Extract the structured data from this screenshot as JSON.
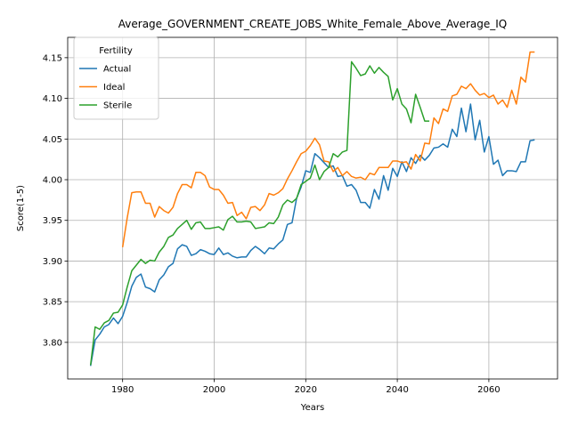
{
  "chart_data": {
    "type": "line",
    "title": "Average_GOVERNMENT_CREATE_JOBS_White_Female_Above_Average_IQ",
    "xlabel": "Years",
    "ylabel": "Score(1-5)",
    "xlim": [
      1968,
      2075
    ],
    "ylim": [
      3.755,
      4.175
    ],
    "xticks": [
      1980,
      2000,
      2020,
      2040,
      2060
    ],
    "yticks": [
      3.8,
      3.85,
      3.9,
      3.95,
      4.0,
      4.05,
      4.1,
      4.15
    ],
    "grid": true,
    "legend": {
      "title": "Fertility",
      "position": "upper left"
    },
    "series": [
      {
        "name": "Actual",
        "color": "#1f77b4",
        "x": [
          1973,
          1974,
          1975,
          1976,
          1977,
          1978,
          1979,
          1980,
          1981,
          1982,
          1983,
          1984,
          1985,
          1986,
          1987,
          1988,
          1989,
          1990,
          1991,
          1992,
          1993,
          1994,
          1995,
          1996,
          1997,
          1998,
          1999,
          2000,
          2001,
          2002,
          2003,
          2004,
          2005,
          2006,
          2007,
          2008,
          2009,
          2010,
          2011,
          2012,
          2013,
          2014,
          2015,
          2016,
          2017,
          2018,
          2019,
          2020,
          2021,
          2022,
          2023,
          2024,
          2025,
          2026,
          2027,
          2028,
          2029,
          2030,
          2031,
          2032,
          2033,
          2034,
          2035,
          2036,
          2037,
          2038,
          2039,
          2040,
          2041,
          2042,
          2043,
          2044,
          2045,
          2046,
          2047,
          2048,
          2049,
          2050,
          2051,
          2052,
          2053,
          2054,
          2055,
          2056,
          2057,
          2058,
          2059,
          2060,
          2061,
          2062,
          2063,
          2064,
          2065,
          2066,
          2067,
          2068,
          2069,
          2070
        ],
        "values": [
          3.771,
          3.803,
          3.81,
          3.819,
          3.822,
          3.83,
          3.823,
          3.832,
          3.849,
          3.869,
          3.88,
          3.884,
          3.868,
          3.866,
          3.862,
          3.877,
          3.883,
          3.893,
          3.897,
          3.915,
          3.92,
          3.918,
          3.907,
          3.909,
          3.914,
          3.912,
          3.909,
          3.908,
          3.916,
          3.908,
          3.91,
          3.906,
          3.904,
          3.905,
          3.905,
          3.913,
          3.918,
          3.914,
          3.909,
          3.916,
          3.915,
          3.921,
          3.926,
          3.945,
          3.947,
          3.977,
          3.991,
          4.011,
          4.009,
          4.032,
          4.027,
          4.021,
          4.015,
          4.017,
          4.004,
          4.005,
          3.992,
          3.994,
          3.987,
          3.972,
          3.972,
          3.965,
          3.988,
          3.976,
          4.005,
          3.987,
          4.014,
          4.004,
          4.022,
          4.01,
          4.027,
          4.02,
          4.03,
          4.024,
          4.03,
          4.039,
          4.04,
          4.044,
          4.04,
          4.062,
          4.053,
          4.088,
          4.059,
          4.093,
          4.049,
          4.073,
          4.034,
          4.053,
          4.019,
          4.024,
          4.005,
          4.011,
          4.011,
          4.01,
          4.022,
          4.022,
          4.048,
          4.049
        ]
      },
      {
        "name": "Ideal",
        "color": "#ff7f0e",
        "x": [
          1980,
          1981,
          1982,
          1983,
          1984,
          1985,
          1986,
          1987,
          1988,
          1989,
          1990,
          1991,
          1992,
          1993,
          1994,
          1995,
          1996,
          1997,
          1998,
          1999,
          2000,
          2001,
          2002,
          2003,
          2004,
          2005,
          2006,
          2007,
          2008,
          2009,
          2010,
          2011,
          2012,
          2013,
          2014,
          2015,
          2016,
          2017,
          2018,
          2019,
          2020,
          2021,
          2022,
          2023,
          2024,
          2025,
          2026,
          2027,
          2028,
          2029,
          2030,
          2031,
          2032,
          2033,
          2034,
          2035,
          2036,
          2037,
          2038,
          2039,
          2040,
          2041,
          2042,
          2043,
          2044,
          2045,
          2046,
          2047,
          2048,
          2049,
          2050,
          2051,
          2052,
          2053,
          2054,
          2055,
          2056,
          2057,
          2058,
          2059,
          2060,
          2061,
          2062,
          2063,
          2064,
          2065,
          2066,
          2067,
          2068,
          2069,
          2070
        ],
        "values": [
          3.917,
          3.953,
          3.984,
          3.985,
          3.985,
          3.971,
          3.971,
          3.954,
          3.967,
          3.962,
          3.959,
          3.966,
          3.983,
          3.994,
          3.994,
          3.99,
          4.009,
          4.009,
          4.005,
          3.991,
          3.988,
          3.988,
          3.981,
          3.971,
          3.972,
          3.956,
          3.96,
          3.952,
          3.966,
          3.967,
          3.962,
          3.969,
          3.983,
          3.981,
          3.984,
          3.989,
          4.001,
          4.011,
          4.022,
          4.032,
          4.035,
          4.042,
          4.051,
          4.043,
          4.023,
          4.022,
          4.01,
          4.015,
          4.005,
          4.01,
          4.004,
          4.002,
          4.003,
          4.0,
          4.008,
          4.006,
          4.015,
          4.015,
          4.015,
          4.023,
          4.023,
          4.021,
          4.022,
          4.013,
          4.031,
          4.023,
          4.045,
          4.044,
          4.076,
          4.069,
          4.087,
          4.084,
          4.103,
          4.105,
          4.115,
          4.112,
          4.118,
          4.11,
          4.104,
          4.106,
          4.101,
          4.104,
          4.093,
          4.098,
          4.089,
          4.11,
          4.093,
          4.126,
          4.12,
          4.157,
          4.157
        ]
      },
      {
        "name": "Sterile",
        "color": "#2ca02c",
        "x": [
          1973,
          1974,
          1975,
          1976,
          1977,
          1978,
          1979,
          1980,
          1981,
          1982,
          1983,
          1984,
          1985,
          1986,
          1987,
          1988,
          1989,
          1990,
          1991,
          1992,
          1993,
          1994,
          1995,
          1996,
          1997,
          1998,
          1999,
          2000,
          2001,
          2002,
          2003,
          2004,
          2005,
          2006,
          2007,
          2008,
          2009,
          2010,
          2011,
          2012,
          2013,
          2014,
          2015,
          2016,
          2017,
          2018,
          2019,
          2020,
          2021,
          2022,
          2023,
          2024,
          2025,
          2026,
          2027,
          2028,
          2029,
          2030,
          2031,
          2032,
          2033,
          2034,
          2035,
          2036,
          2037,
          2038,
          2039,
          2040,
          2041,
          2042,
          2043,
          2044,
          2045,
          2046,
          2047
        ],
        "values": [
          3.772,
          3.819,
          3.816,
          3.824,
          3.827,
          3.836,
          3.837,
          3.846,
          3.868,
          3.888,
          3.895,
          3.902,
          3.897,
          3.901,
          3.9,
          3.911,
          3.918,
          3.929,
          3.932,
          3.94,
          3.945,
          3.95,
          3.939,
          3.947,
          3.948,
          3.94,
          3.94,
          3.941,
          3.942,
          3.938,
          3.951,
          3.955,
          3.948,
          3.948,
          3.949,
          3.948,
          3.94,
          3.941,
          3.942,
          3.947,
          3.946,
          3.954,
          3.969,
          3.975,
          3.972,
          3.977,
          3.994,
          3.998,
          4.002,
          4.018,
          4.0,
          4.01,
          4.015,
          4.032,
          4.028,
          4.034,
          4.036,
          4.145,
          4.137,
          4.128,
          4.13,
          4.14,
          4.131,
          4.138,
          4.132,
          4.127,
          4.098,
          4.112,
          4.093,
          4.087,
          4.07,
          4.105,
          4.089,
          4.072,
          4.072
        ]
      }
    ]
  }
}
